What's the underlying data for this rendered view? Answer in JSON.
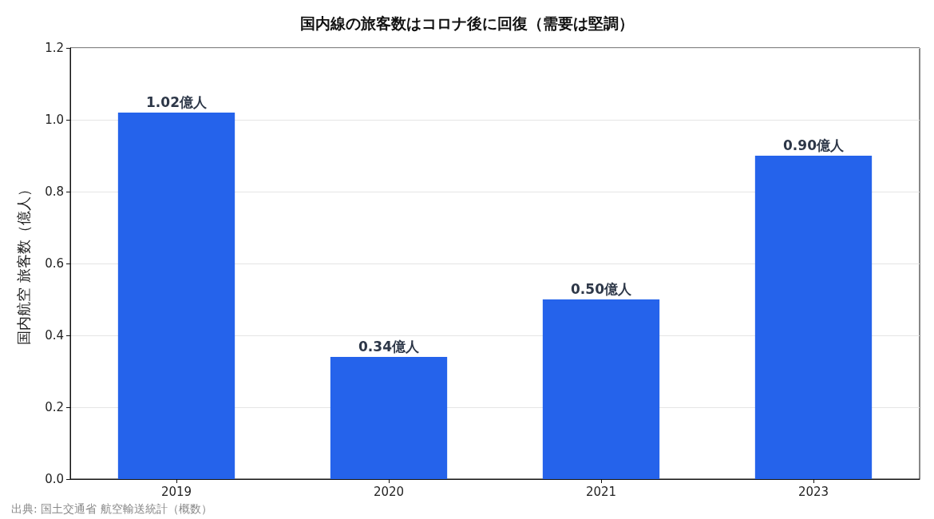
{
  "chart_data": {
    "type": "bar",
    "title": "国内線の旅客数はコロナ後に回復（需要は堅調）",
    "ylabel": "国内航空 旅客数（億人）",
    "categories": [
      "2019",
      "2020",
      "2021",
      "2023"
    ],
    "values": [
      1.02,
      0.34,
      0.5,
      0.9
    ],
    "value_labels": [
      "1.02億人",
      "0.34億人",
      "0.50億人",
      "0.90億人"
    ],
    "color": "#2563eb",
    "ylim": [
      0,
      1.2
    ],
    "yticks": [
      {
        "value": 0,
        "label": "0.0"
      },
      {
        "value": 0.2,
        "label": "0.2"
      },
      {
        "value": 0.4,
        "label": "0.4"
      },
      {
        "value": 0.6,
        "label": "0.6"
      },
      {
        "value": 0.8,
        "label": "0.8"
      },
      {
        "value": 1,
        "label": "1.0"
      },
      {
        "value": 1.2,
        "label": "1.2"
      }
    ],
    "grid": "y",
    "annotations": [
      "出典: 国土交通省 航空輸送統計（概数）"
    ]
  }
}
